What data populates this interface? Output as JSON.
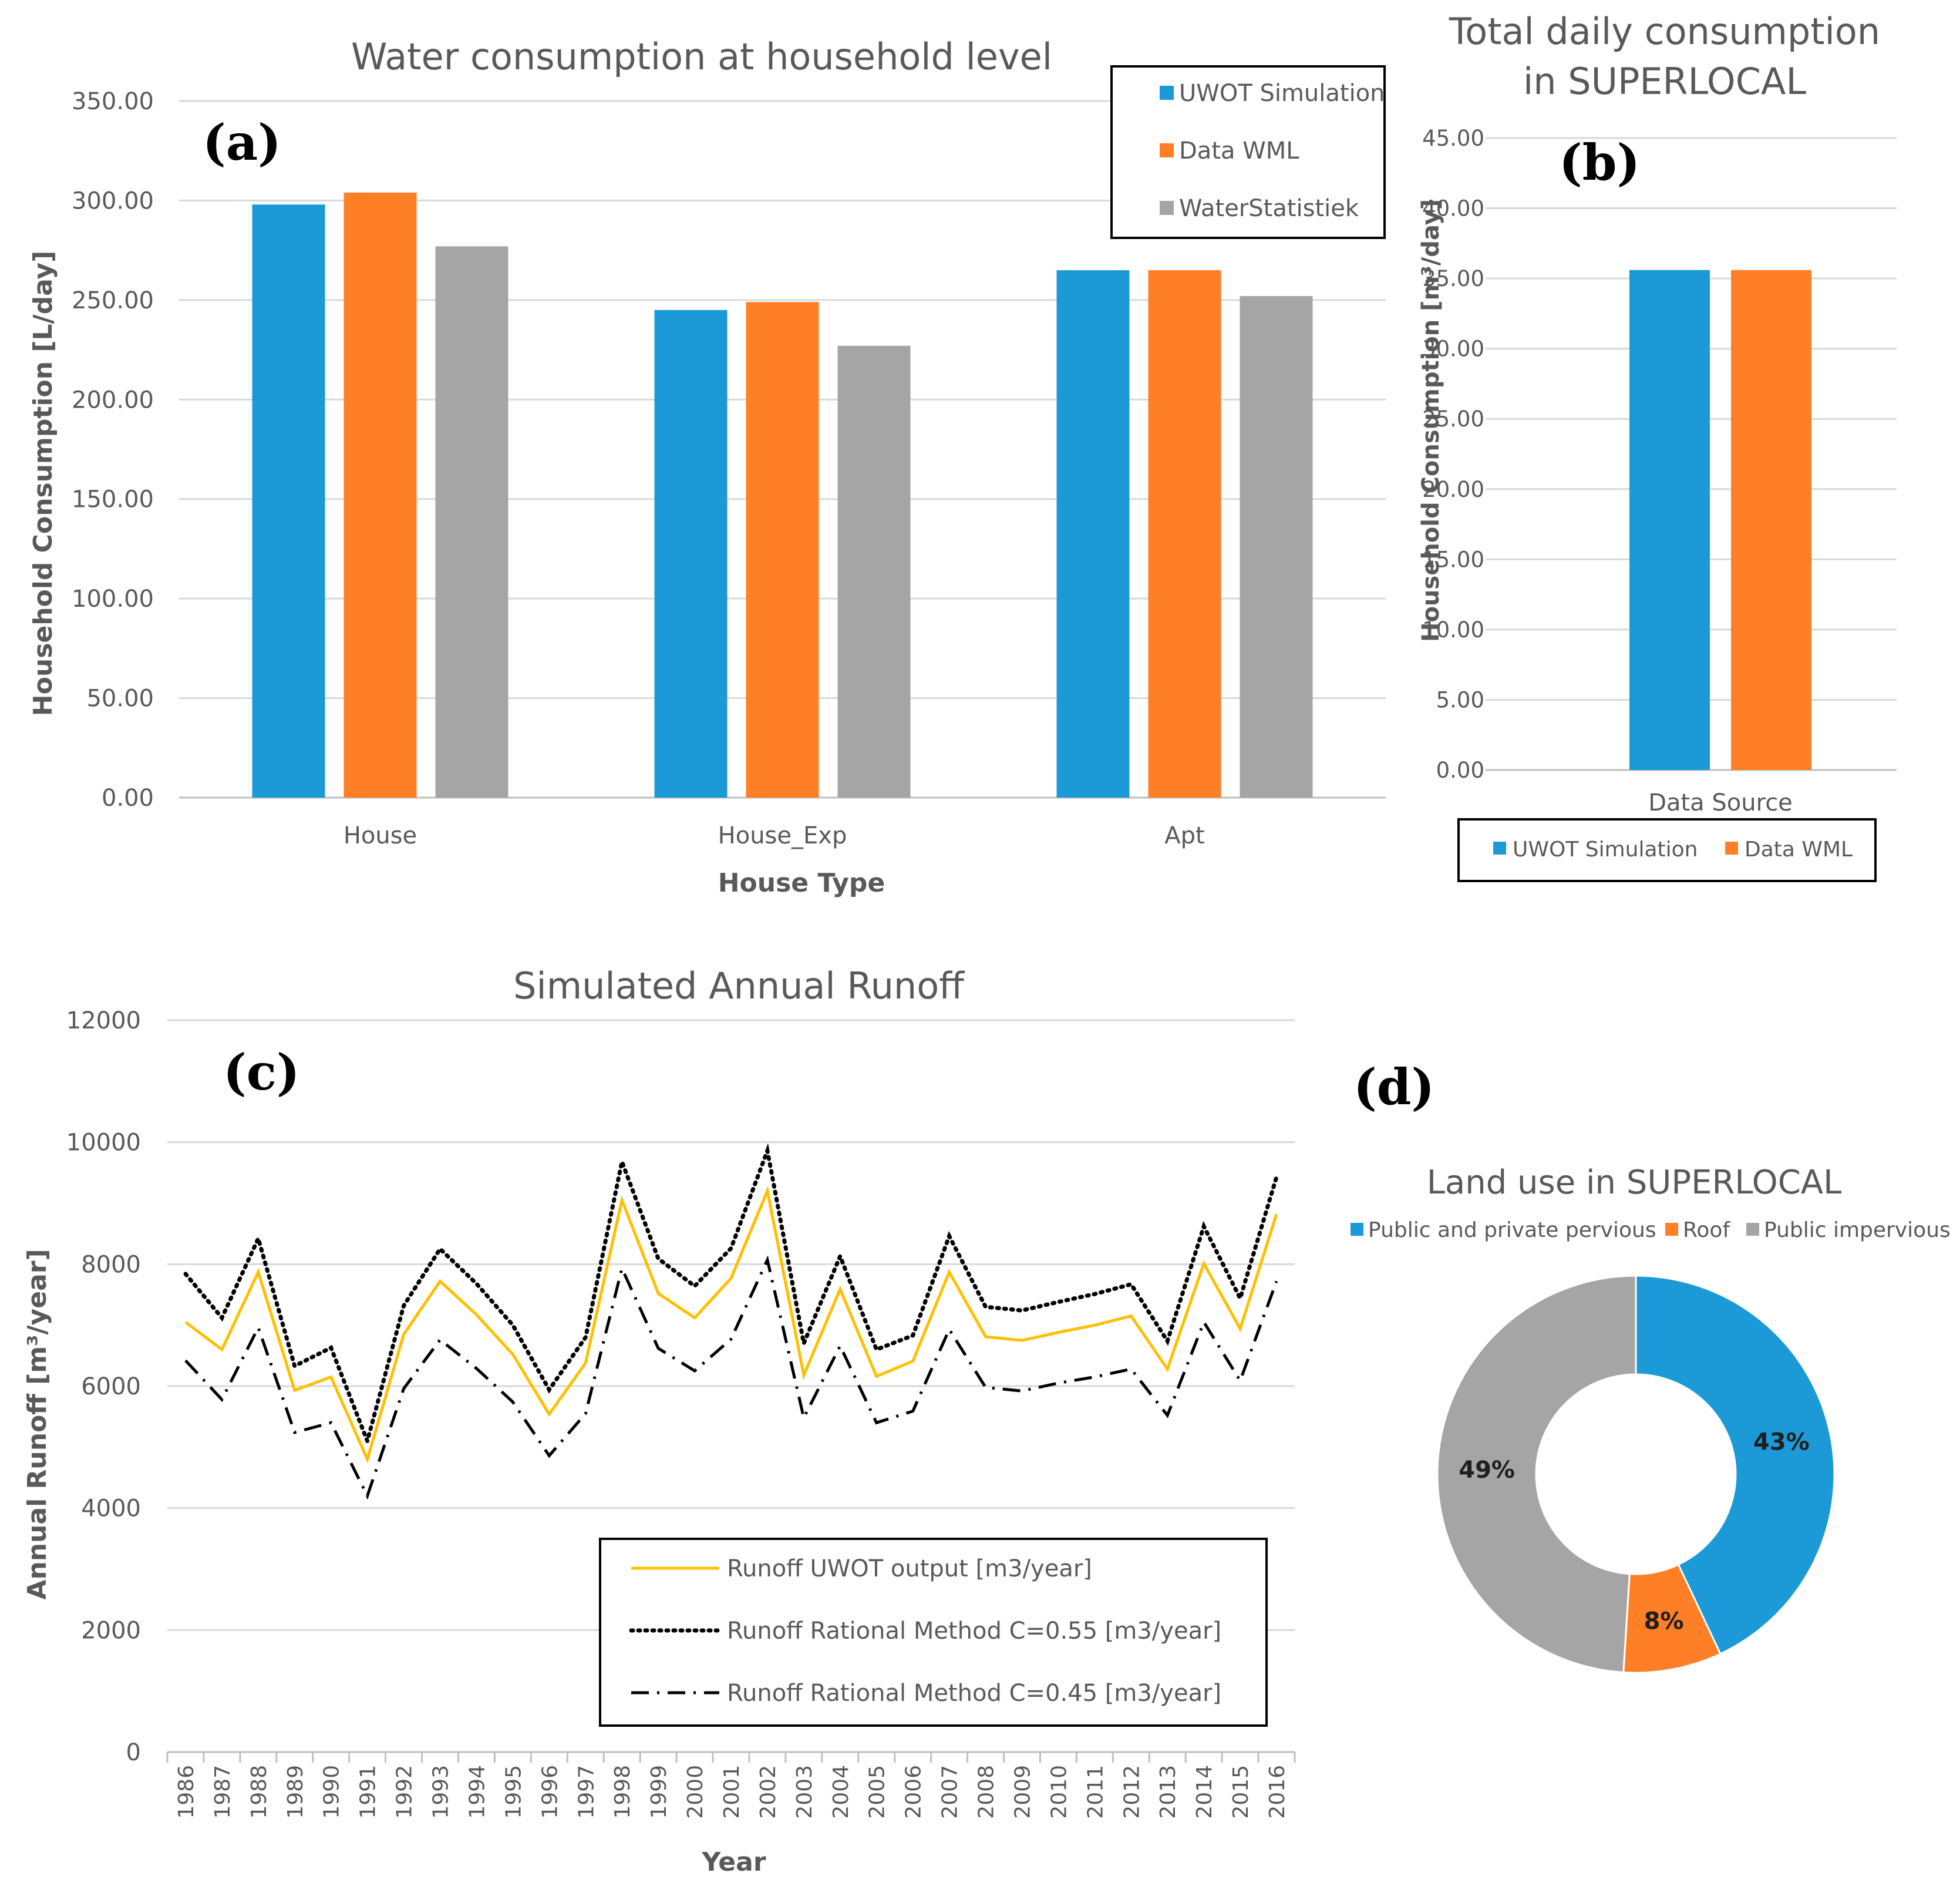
{
  "chart_data": [
    {
      "id": "a",
      "type": "bar",
      "panel_label": "(a)",
      "title": "Water consumption at household level",
      "xlabel": "House Type",
      "ylabel": "Household Consumption [L/day]",
      "ylim": [
        0,
        350
      ],
      "yticks": [
        "0.00",
        "50.00",
        "100.00",
        "150.00",
        "200.00",
        "250.00",
        "300.00",
        "350.00"
      ],
      "categories": [
        "House",
        "House_Exp",
        "Apt"
      ],
      "series": [
        {
          "name": "UWOT Simulation",
          "color": "#1B9AD7",
          "values": [
            298,
            245,
            265
          ]
        },
        {
          "name": "Data WML",
          "color": "#FF7F27",
          "values": [
            304,
            249,
            265
          ]
        },
        {
          "name": "WaterStatistiek",
          "color": "#A5A5A5",
          "values": [
            277,
            227,
            252
          ]
        }
      ],
      "grid": true,
      "legend": "top-right"
    },
    {
      "id": "b",
      "type": "bar",
      "panel_label": "(b)",
      "title": [
        "Total daily consumption",
        "in SUPERLOCAL"
      ],
      "xlabel": "Data Source",
      "ylabel": "Household Consumption [m³/day]",
      "ylim": [
        0,
        45
      ],
      "yticks": [
        "0.00",
        "5.00",
        "10.00",
        "15.00",
        "20.00",
        "25.00",
        "30.00",
        "35.00",
        "40.00",
        "45.00"
      ],
      "series": [
        {
          "name": "UWOT Simulation",
          "color": "#1B9AD7",
          "values": [
            35.6
          ]
        },
        {
          "name": "Data WML",
          "color": "#FF7F27",
          "values": [
            35.6
          ]
        }
      ],
      "grid": true,
      "legend": "bottom"
    },
    {
      "id": "c",
      "type": "line",
      "panel_label": "(c)",
      "title": "Simulated Annual Runoff",
      "xlabel": "Year",
      "ylabel": "Annual Runoff [m³/year]",
      "ylim": [
        0,
        12000
      ],
      "yticks": [
        "0",
        "2000",
        "4000",
        "6000",
        "8000",
        "10000",
        "12000"
      ],
      "x": [
        "1986",
        "1987",
        "1988",
        "1989",
        "1990",
        "1991",
        "1992",
        "1993",
        "1994",
        "1995",
        "1996",
        "1997",
        "1998",
        "1999",
        "2000",
        "2001",
        "2002",
        "2003",
        "2004",
        "2005",
        "2006",
        "2007",
        "2008",
        "2009",
        "2010",
        "2011",
        "2012",
        "2013",
        "2014",
        "2015",
        "2016"
      ],
      "series": [
        {
          "name": "Runoff UWOT output [m3/year]",
          "color": "#FFC000",
          "style": "solid",
          "values": [
            7050,
            6600,
            7870,
            5930,
            6150,
            4800,
            6850,
            7720,
            7170,
            6520,
            5540,
            6380,
            9050,
            7520,
            7120,
            7770,
            9200,
            6180,
            7590,
            6160,
            6410,
            7870,
            6810,
            6750,
            6880,
            7000,
            7150,
            6280,
            8010,
            6940,
            8820
          ]
        },
        {
          "name": "Runoff Rational Method C=0.55 [m3/year]",
          "color": "#000000",
          "style": "dotted",
          "values": [
            7840,
            7120,
            8420,
            6330,
            6630,
            5100,
            7320,
            8250,
            7680,
            7000,
            5940,
            6800,
            9680,
            8090,
            7640,
            8260,
            9860,
            6700,
            8130,
            6600,
            6830,
            8460,
            7300,
            7240,
            7380,
            7510,
            7670,
            6740,
            8620,
            7440,
            9430
          ]
        },
        {
          "name": "Runoff Rational Method C=0.45 [m3/year]",
          "color": "#000000",
          "style": "dashdot",
          "values": [
            6420,
            5780,
            6960,
            5240,
            5400,
            4200,
            5960,
            6760,
            6290,
            5740,
            4860,
            5550,
            7930,
            6620,
            6250,
            6770,
            8070,
            5480,
            6660,
            5400,
            5590,
            6930,
            5980,
            5920,
            6050,
            6150,
            6280,
            5520,
            7050,
            6090,
            7720
          ]
        }
      ],
      "grid": true,
      "legend": "bottom-right"
    },
    {
      "id": "d",
      "type": "pie",
      "panel_label": "(d)",
      "title": "Land use in SUPERLOCAL",
      "labels": [
        "Public and private pervious",
        "Roof",
        "Public impervious"
      ],
      "values": [
        43,
        8,
        49
      ],
      "value_labels": [
        "43%",
        "8%",
        "49%"
      ],
      "colors": [
        "#1B9AD7",
        "#FF7F27",
        "#A5A5A5"
      ],
      "donut": true,
      "legend": "top"
    }
  ]
}
